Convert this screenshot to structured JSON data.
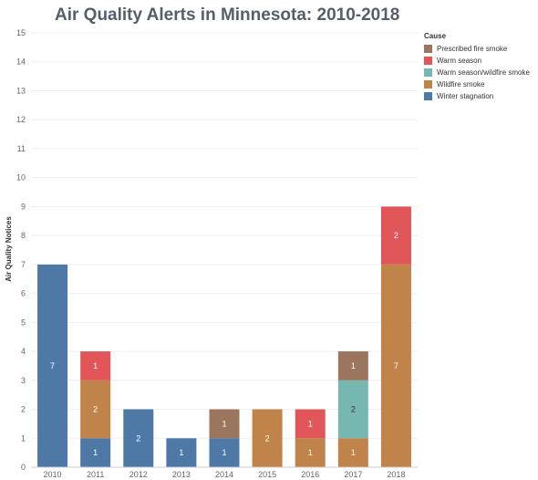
{
  "chart_data": {
    "type": "bar",
    "stacked": true,
    "title": "Air Quality Alerts in Minnesota: 2010-2018",
    "xlabel": "",
    "ylabel": "Air Quality Notices",
    "ylim": [
      0,
      15
    ],
    "yticks": [
      "0",
      "1",
      "2",
      "3",
      "4",
      "5",
      "6",
      "7",
      "8",
      "9",
      "10",
      "11",
      "12",
      "13",
      "14",
      "15"
    ],
    "grid": true,
    "legend_position": "top-right",
    "legend_title": "Cause",
    "categories": [
      "2010",
      "2011",
      "2012",
      "2013",
      "2014",
      "2015",
      "2016",
      "2017",
      "2018"
    ],
    "series": [
      {
        "name": "Winter stagnation",
        "color": "#4e79a7",
        "values": [
          7,
          1,
          2,
          1,
          1,
          0,
          0,
          0,
          0
        ]
      },
      {
        "name": "Wildfire smoke",
        "color": "#c0844a",
        "values": [
          0,
          2,
          0,
          0,
          0,
          2,
          1,
          1,
          7
        ]
      },
      {
        "name": "Warm season/wildfire smoke",
        "color": "#76b7b2",
        "values": [
          0,
          0,
          0,
          0,
          0,
          0,
          0,
          2,
          0
        ]
      },
      {
        "name": "Warm season",
        "color": "#e15759",
        "values": [
          0,
          1,
          0,
          0,
          0,
          0,
          1,
          0,
          2
        ]
      },
      {
        "name": "Prescribed fire smoke",
        "color": "#9c755f",
        "values": [
          0,
          0,
          0,
          0,
          1,
          0,
          0,
          1,
          0
        ]
      }
    ],
    "legend_order": [
      "Prescribed fire smoke",
      "Warm season",
      "Warm season/wildfire smoke",
      "Wildfire smoke",
      "Winter stagnation"
    ]
  }
}
